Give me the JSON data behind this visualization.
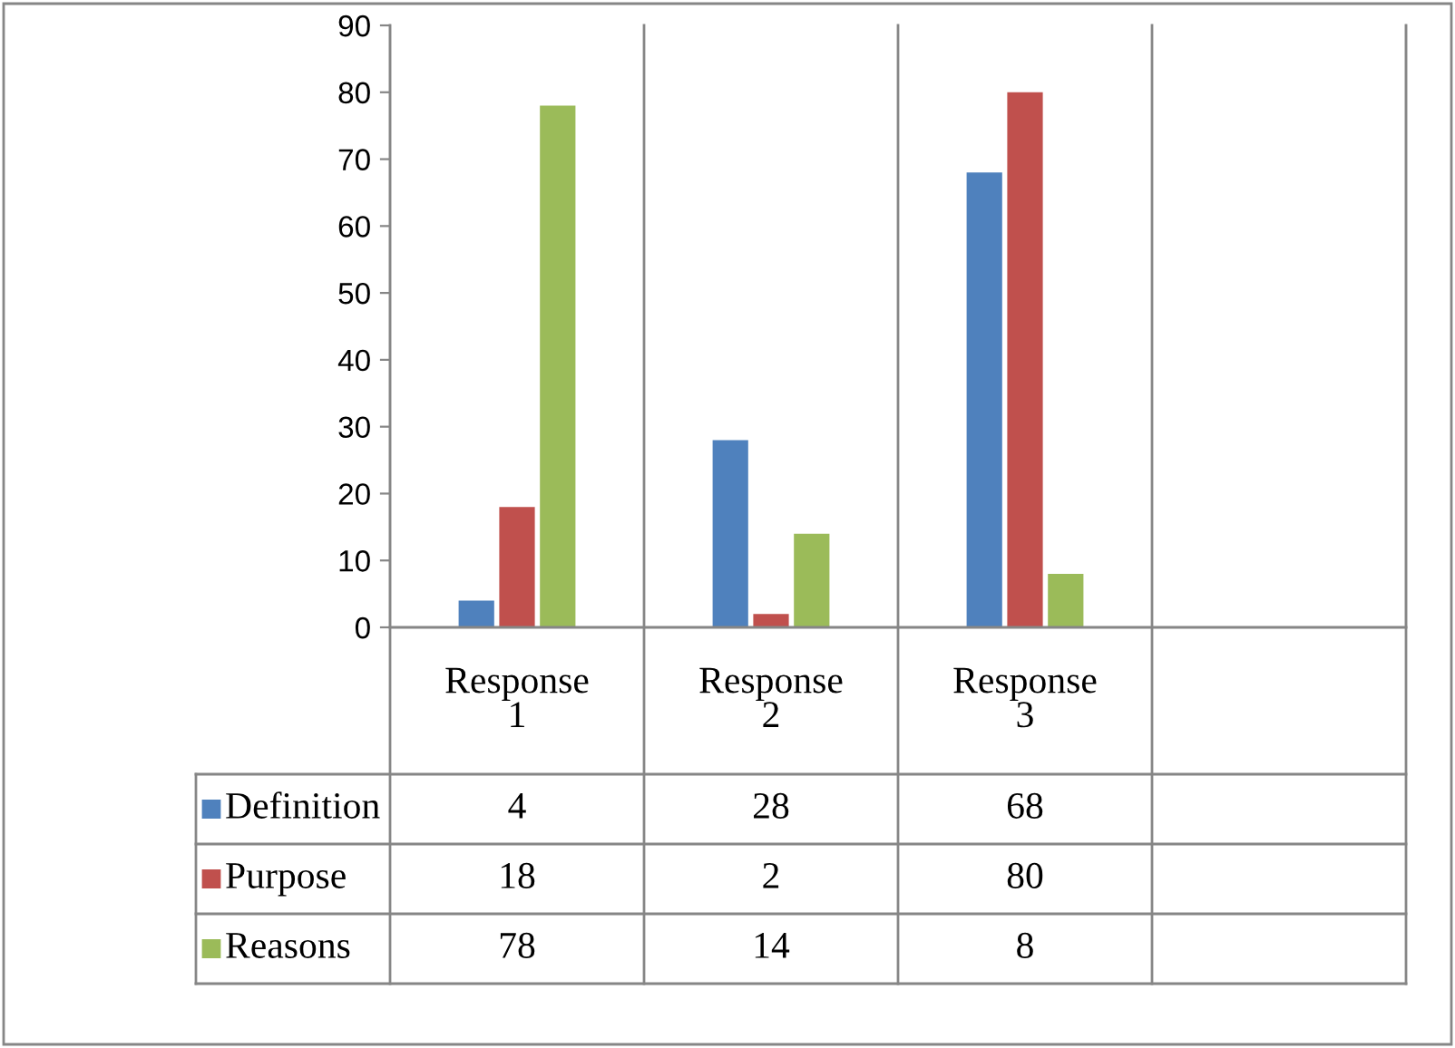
{
  "chart_data": {
    "type": "bar",
    "categories": [
      "Response\n1",
      "Response\n2",
      "Response\n3",
      null
    ],
    "series": [
      {
        "name": "Definition",
        "color": "#4f81bd",
        "values": [
          4,
          28,
          68,
          null
        ]
      },
      {
        "name": "Purpose",
        "color": "#c0504d",
        "values": [
          18,
          2,
          80,
          null
        ]
      },
      {
        "name": "Reasons",
        "color": "#9bbb59",
        "values": [
          78,
          14,
          8,
          null
        ]
      }
    ],
    "ylim": [
      0,
      90
    ],
    "yticks": [
      0,
      10,
      20,
      30,
      40,
      50,
      60,
      70,
      80,
      90
    ],
    "grid": false,
    "legend": "bottom",
    "data_labels": true
  }
}
